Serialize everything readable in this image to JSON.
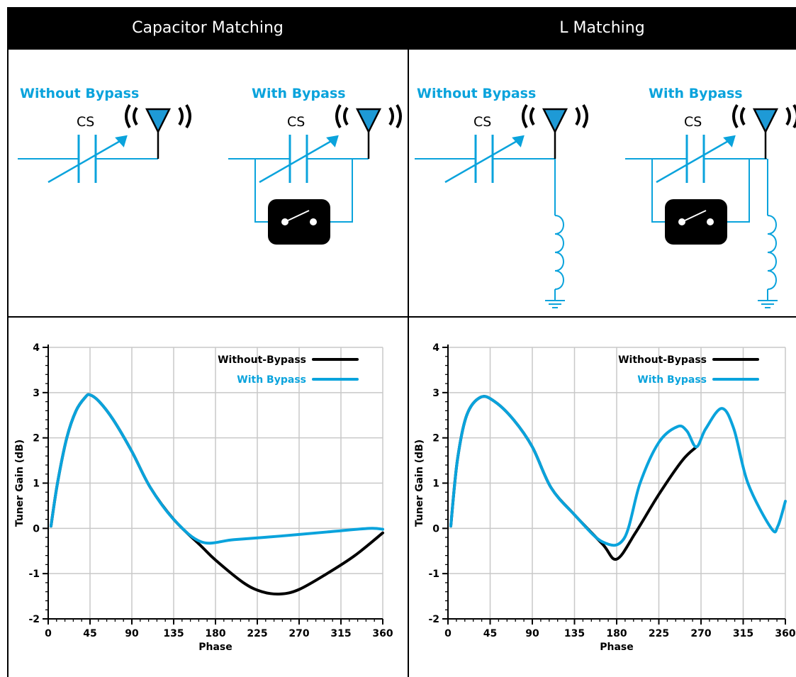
{
  "header": {
    "left_title": "Capacitor Matching",
    "right_title": "L Matching"
  },
  "diagrams": {
    "without_bypass": "Without Bypass",
    "with_bypass": "With Bypass",
    "cs_label": "CS"
  },
  "colors": {
    "accent": "#0aa3dc",
    "black": "#000000",
    "grid": "#c8c8c8"
  },
  "chart_data": [
    {
      "type": "line",
      "panel": "Capacitor Matching",
      "xlabel": "Phase",
      "ylabel": "Tuner Gain (dB)",
      "xlim": [
        0,
        360
      ],
      "ylim": [
        -2,
        4
      ],
      "xticks": [
        0,
        45,
        90,
        135,
        180,
        225,
        270,
        315,
        360
      ],
      "yticks": [
        -2,
        -1,
        0,
        1,
        2,
        3,
        4
      ],
      "grid": true,
      "legend": "top-right",
      "series": [
        {
          "name": "Without-Bypass",
          "color": "#000000",
          "x": [
            3,
            10,
            20,
            30,
            40,
            45,
            55,
            70,
            90,
            110,
            135,
            165,
            180,
            210,
            230,
            250,
            270,
            300,
            330,
            360
          ],
          "y": [
            0.05,
            1.0,
            2.0,
            2.6,
            2.9,
            2.95,
            2.8,
            2.4,
            1.7,
            0.9,
            0.2,
            -0.4,
            -0.7,
            -1.2,
            -1.4,
            -1.45,
            -1.35,
            -1.0,
            -0.6,
            -0.1
          ]
        },
        {
          "name": "With Bypass",
          "color": "#0aa3dc",
          "x": [
            3,
            10,
            20,
            30,
            40,
            45,
            55,
            70,
            90,
            110,
            135,
            165,
            200,
            250,
            300,
            345,
            360
          ],
          "y": [
            0.05,
            1.0,
            2.0,
            2.6,
            2.9,
            2.95,
            2.8,
            2.4,
            1.7,
            0.9,
            0.2,
            -0.3,
            -0.25,
            -0.17,
            -0.08,
            0.0,
            -0.02
          ]
        }
      ]
    },
    {
      "type": "line",
      "panel": "L Matching",
      "xlabel": "Phase",
      "ylabel": "Tuner Gain (dB)",
      "xlim": [
        0,
        360
      ],
      "ylim": [
        -2,
        4
      ],
      "xticks": [
        0,
        45,
        90,
        135,
        180,
        225,
        270,
        315,
        360
      ],
      "yticks": [
        -2,
        -1,
        0,
        1,
        2,
        3,
        4
      ],
      "grid": true,
      "legend": "top-right",
      "series": [
        {
          "name": "Without-Bypass",
          "color": "#000000",
          "x": [
            3,
            10,
            20,
            35,
            50,
            70,
            90,
            110,
            135,
            165,
            180,
            200,
            225,
            250,
            265
          ],
          "y": [
            0.05,
            1.5,
            2.5,
            2.9,
            2.8,
            2.4,
            1.8,
            0.9,
            0.3,
            -0.35,
            -0.68,
            -0.1,
            0.75,
            1.5,
            1.8
          ]
        },
        {
          "name": "With Bypass",
          "color": "#0aa3dc",
          "x": [
            3,
            10,
            20,
            35,
            50,
            70,
            90,
            110,
            135,
            165,
            188,
            205,
            225,
            245,
            255,
            265,
            275,
            292,
            305,
            320,
            345,
            352,
            360
          ],
          "y": [
            0.05,
            1.5,
            2.5,
            2.9,
            2.8,
            2.4,
            1.8,
            0.9,
            0.3,
            -0.3,
            -0.22,
            1.0,
            1.9,
            2.25,
            2.15,
            1.8,
            2.2,
            2.65,
            2.2,
            1.0,
            0.0,
            0.05,
            0.6
          ]
        }
      ]
    }
  ]
}
